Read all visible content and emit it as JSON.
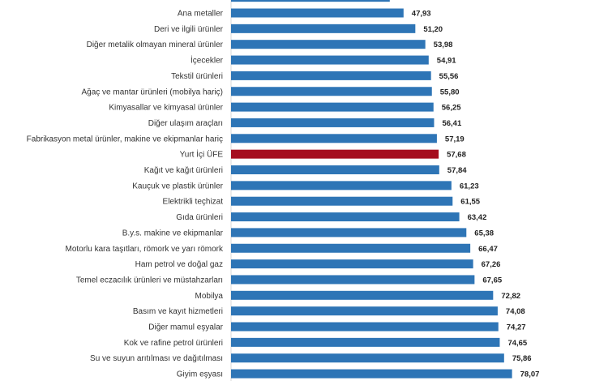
{
  "chart_data": {
    "type": "bar",
    "orientation": "horizontal",
    "title": "",
    "xlabel": "",
    "ylabel": "",
    "xlim": [
      0,
      100
    ],
    "grid": false,
    "colors": {
      "default": "#2e75b6",
      "highlight": "#a50d1e"
    },
    "highlight_category": "Yurt İçi ÜFE",
    "partial_top_bar_value": 44.1,
    "categories": [
      "Ana metaller",
      "Deri ve ilgili ürünler",
      "Diğer metalik olmayan mineral ürünler",
      "İçecekler",
      "Tekstil ürünleri",
      "Ağaç ve mantar ürünleri (mobilya hariç)",
      "Kimyasallar ve kimyasal ürünler",
      "Diğer ulaşım araçları",
      "Fabrikasyon metal ürünler, makine ve ekipmanlar hariç",
      "Yurt İçi ÜFE",
      "Kağıt ve kağıt ürünleri",
      "Kauçuk ve plastik ürünler",
      "Elektrikli teçhizat",
      "Gıda ürünleri",
      "B.y.s. makine ve ekipmanlar",
      "Motorlu kara taşıtları, römork ve yarı römork",
      "Ham petrol ve doğal gaz",
      "Temel eczacılık ürünleri ve müstahzarları",
      "Mobilya",
      "Basım ve kayıt hizmetleri",
      "Diğer mamul eşyalar",
      "Kok ve rafine petrol ürünleri",
      "Su ve suyun arıtılması ve dağıtılması",
      "Giyim eşyası"
    ],
    "values": [
      47.93,
      51.2,
      53.98,
      54.91,
      55.56,
      55.8,
      56.25,
      56.41,
      57.19,
      57.68,
      57.84,
      61.23,
      61.55,
      63.42,
      65.38,
      66.47,
      67.26,
      67.65,
      72.82,
      74.08,
      74.27,
      74.65,
      75.86,
      78.07
    ],
    "value_labels": [
      "47,93",
      "51,20",
      "53,98",
      "54,91",
      "55,56",
      "55,80",
      "56,25",
      "56,41",
      "57,19",
      "57,68",
      "57,84",
      "61,23",
      "61,55",
      "63,42",
      "65,38",
      "66,47",
      "67,26",
      "67,65",
      "72,82",
      "74,08",
      "74,27",
      "74,65",
      "75,86",
      "78,07"
    ]
  }
}
